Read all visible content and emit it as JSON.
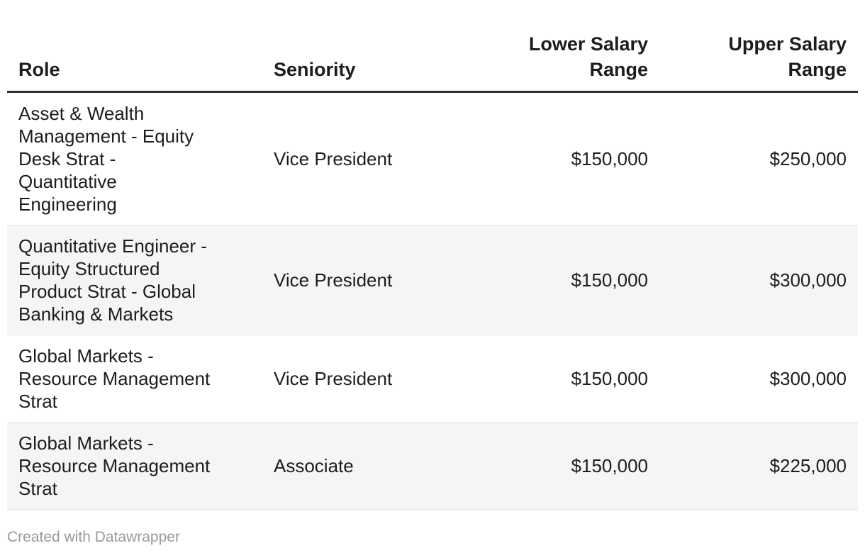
{
  "chart_data": {
    "type": "table",
    "columns": [
      {
        "label": "Role",
        "align": "left"
      },
      {
        "label": "Seniority",
        "align": "left"
      },
      {
        "label": "Lower Salary Range",
        "lines": [
          "Lower Salary",
          "Range"
        ],
        "align": "right"
      },
      {
        "label": "Upper Salary Range",
        "lines": [
          "Upper Salary",
          "Range"
        ],
        "align": "right"
      }
    ],
    "rows": [
      {
        "role": "Asset & Wealth Management - Equity Desk Strat - Quantitative Engineering",
        "seniority": "Vice President",
        "lower_salary_range": "$150,000",
        "upper_salary_range": "$250,000"
      },
      {
        "role": "Quantitative Engineer - Equity Structured Product Strat - Global Banking & Markets",
        "seniority": "Vice President",
        "lower_salary_range": "$150,000",
        "upper_salary_range": "$300,000"
      },
      {
        "role": "Global Markets - Resource Management Strat",
        "seniority": "Vice President",
        "lower_salary_range": "$150,000",
        "upper_salary_range": "$300,000"
      },
      {
        "role": "Global Markets - Resource Management Strat",
        "seniority": "Associate",
        "lower_salary_range": "$150,000",
        "upper_salary_range": "$225,000"
      }
    ],
    "layout_hints": {
      "zebra_striping": true,
      "header_rule": true
    }
  },
  "colors": {
    "text": "#1d1d1d",
    "header_rule": "#303030",
    "row_alt_bg": "#f5f5f5",
    "row_border": "#e8e8e8",
    "credit_text": "#9a9a9a",
    "background": "#ffffff"
  },
  "footer": {
    "credit": "Created with Datawrapper"
  }
}
